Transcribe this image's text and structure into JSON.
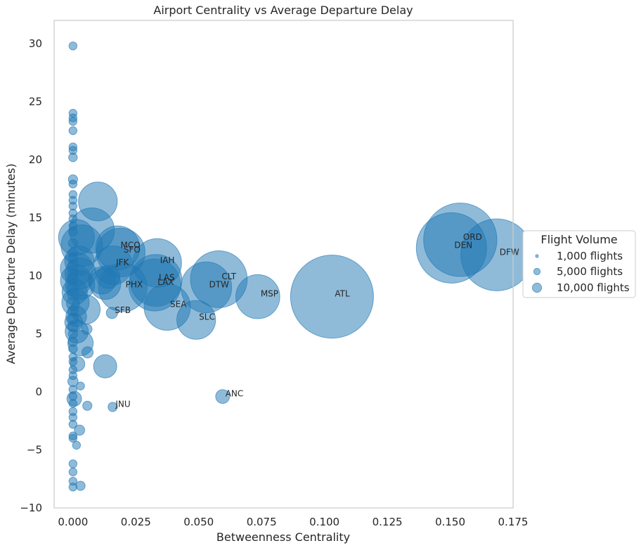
{
  "chart_data": {
    "type": "scatter",
    "title": "Airport Centrality vs Average Departure Delay",
    "xlabel": "Betweenness Centrality",
    "ylabel": "Average Departure Delay (minutes)",
    "xlim": [
      -0.0075,
      0.175
    ],
    "ylim": [
      -10,
      32
    ],
    "x_ticks": [
      "0.000",
      "0.025",
      "0.050",
      "0.075",
      "0.100",
      "0.125",
      "0.150",
      "0.175"
    ],
    "x_tick_values": [
      0,
      0.025,
      0.05,
      0.075,
      0.1,
      0.125,
      0.15,
      0.175
    ],
    "y_ticks": [
      "−10",
      "−5",
      "0",
      "5",
      "10",
      "15",
      "20",
      "25",
      "30"
    ],
    "y_tick_values": [
      -10,
      -5,
      0,
      5,
      10,
      15,
      20,
      25,
      30
    ],
    "grid": false,
    "marker_color": "#1f77b4",
    "marker_alpha": 0.5,
    "size_encoding": "flight volume",
    "legend": {
      "title": "Flight Volume",
      "placement": "center-right outside",
      "entries": [
        {
          "label": "1,000 flights",
          "flights": 1000
        },
        {
          "label": "5,000 flights",
          "flights": 5000
        },
        {
          "label": "10,000 flights",
          "flights": 10000
        }
      ]
    },
    "labeled_points": [
      {
        "label": "ATL",
        "x": 0.103,
        "y": 8.2,
        "flights": 32000
      },
      {
        "label": "ORD",
        "x": 0.154,
        "y": 13.1,
        "flights": 25000
      },
      {
        "label": "DEN",
        "x": 0.1505,
        "y": 12.4,
        "flights": 23000
      },
      {
        "label": "DFW",
        "x": 0.1685,
        "y": 11.8,
        "flights": 24000
      },
      {
        "label": "MSP",
        "x": 0.0735,
        "y": 8.2,
        "flights": 9000
      },
      {
        "label": "CLT",
        "x": 0.058,
        "y": 9.7,
        "flights": 15000
      },
      {
        "label": "DTW",
        "x": 0.053,
        "y": 9.0,
        "flights": 12000
      },
      {
        "label": "SLC",
        "x": 0.049,
        "y": 6.2,
        "flights": 7000
      },
      {
        "label": "ANC",
        "x": 0.0595,
        "y": -0.4,
        "flights": 900
      },
      {
        "label": "IAH",
        "x": 0.0335,
        "y": 11.1,
        "flights": 11000
      },
      {
        "label": "LAS",
        "x": 0.033,
        "y": 9.6,
        "flights": 12500
      },
      {
        "label": "LAX",
        "x": 0.0325,
        "y": 9.2,
        "flights": 12500
      },
      {
        "label": "SEA",
        "x": 0.0375,
        "y": 7.3,
        "flights": 10000
      },
      {
        "label": "PHX",
        "x": 0.0198,
        "y": 9.0,
        "flights": 11000
      },
      {
        "label": "MCO",
        "x": 0.0178,
        "y": 12.4,
        "flights": 9000
      },
      {
        "label": "SFO",
        "x": 0.019,
        "y": 12.0,
        "flights": 11000
      },
      {
        "label": "JFK",
        "x": 0.016,
        "y": 10.9,
        "flights": 7000
      },
      {
        "label": "SFB",
        "x": 0.0155,
        "y": 6.8,
        "flights": 600
      },
      {
        "label": "JNU",
        "x": 0.0158,
        "y": -1.3,
        "flights": 400
      }
    ],
    "unlabeled_points": [
      {
        "x": 0.0099,
        "y": 16.4,
        "flights": 7000
      },
      {
        "x": 0.0075,
        "y": 13.9,
        "flights": 9500
      },
      {
        "x": 0.0035,
        "y": 12.6,
        "flights": 8000
      },
      {
        "x": 0.0014,
        "y": 13.3,
        "flights": 6000
      },
      {
        "x": 0.0025,
        "y": 11.3,
        "flights": 4000
      },
      {
        "x": 0.0015,
        "y": 10.6,
        "flights": 5000
      },
      {
        "x": 0.003,
        "y": 10.2,
        "flights": 4500
      },
      {
        "x": 0.0012,
        "y": 9.6,
        "flights": 4500
      },
      {
        "x": 0.0028,
        "y": 9.2,
        "flights": 4000
      },
      {
        "x": 0.0007,
        "y": 8.6,
        "flights": 3000
      },
      {
        "x": 0.001,
        "y": 7.7,
        "flights": 3500
      },
      {
        "x": 0.005,
        "y": 7.1,
        "flights": 4000
      },
      {
        "x": 0.0013,
        "y": 6.5,
        "flights": 2000
      },
      {
        "x": 0.0003,
        "y": 6.0,
        "flights": 1500
      },
      {
        "x": 0.0015,
        "y": 5.2,
        "flights": 2500
      },
      {
        "x": 0.003,
        "y": 4.2,
        "flights": 3000
      },
      {
        "x": 0.0055,
        "y": 5.4,
        "flights": 500
      },
      {
        "x": 0.0058,
        "y": 3.4,
        "flights": 600
      },
      {
        "x": 0.0018,
        "y": 2.4,
        "flights": 1000
      },
      {
        "x": 0.0128,
        "y": 2.2,
        "flights": 2500
      },
      {
        "x": 0.0128,
        "y": 9.3,
        "flights": 4500
      },
      {
        "x": 0.0115,
        "y": 9.6,
        "flights": 3500
      },
      {
        "x": 0.014,
        "y": 9.9,
        "flights": 2500
      },
      {
        "x": 0.0005,
        "y": -0.6,
        "flights": 1000
      },
      {
        "x": 0.0057,
        "y": -1.2,
        "flights": 400
      },
      {
        "x": 0.0026,
        "y": -3.3,
        "flights": 500
      },
      {
        "x": 0.0014,
        "y": -4.6,
        "flights": 300
      },
      {
        "x": 0.003,
        "y": 0.5,
        "flights": 300
      },
      {
        "x": 0.003,
        "y": -8.1,
        "flights": 400
      },
      {
        "x": 0.0,
        "y": 29.8,
        "flights": 300
      },
      {
        "x": 0.0,
        "y": 24.0,
        "flights": 300
      },
      {
        "x": 0.0,
        "y": 23.6,
        "flights": 300
      },
      {
        "x": 0.0,
        "y": 23.3,
        "flights": 300
      },
      {
        "x": 0.0,
        "y": 22.5,
        "flights": 300
      },
      {
        "x": 0.0,
        "y": 21.1,
        "flights": 300
      },
      {
        "x": 0.0,
        "y": 20.8,
        "flights": 300
      },
      {
        "x": 0.0,
        "y": 20.2,
        "flights": 350
      },
      {
        "x": 0.0,
        "y": 18.3,
        "flights": 400
      },
      {
        "x": 0.0,
        "y": 17.9,
        "flights": 300
      },
      {
        "x": 0.0,
        "y": 17.0,
        "flights": 300
      },
      {
        "x": 0.0,
        "y": 16.5,
        "flights": 300
      },
      {
        "x": 0.0,
        "y": 16.0,
        "flights": 300
      },
      {
        "x": 0.0,
        "y": 15.4,
        "flights": 300
      },
      {
        "x": 0.0,
        "y": 14.9,
        "flights": 300
      },
      {
        "x": 0.0,
        "y": 14.3,
        "flights": 300
      },
      {
        "x": 0.0,
        "y": 13.8,
        "flights": 350
      },
      {
        "x": 0.0,
        "y": 12.8,
        "flights": 400
      },
      {
        "x": 0.0,
        "y": 12.0,
        "flights": 400
      },
      {
        "x": 0.0,
        "y": 11.5,
        "flights": 400
      },
      {
        "x": 0.0,
        "y": 10.9,
        "flights": 500
      },
      {
        "x": 0.0,
        "y": 10.2,
        "flights": 500
      },
      {
        "x": 0.0,
        "y": 9.8,
        "flights": 500
      },
      {
        "x": 0.0,
        "y": 9.0,
        "flights": 600
      },
      {
        "x": 0.0,
        "y": 8.4,
        "flights": 600
      },
      {
        "x": 0.0,
        "y": 7.6,
        "flights": 800
      },
      {
        "x": 0.0,
        "y": 7.0,
        "flights": 500
      },
      {
        "x": 0.0,
        "y": 6.3,
        "flights": 500
      },
      {
        "x": 0.0,
        "y": 5.6,
        "flights": 500
      },
      {
        "x": 0.0,
        "y": 5.0,
        "flights": 400
      },
      {
        "x": 0.0,
        "y": 4.3,
        "flights": 400
      },
      {
        "x": 0.0,
        "y": 3.7,
        "flights": 350
      },
      {
        "x": 0.0,
        "y": 3.0,
        "flights": 300
      },
      {
        "x": 0.0,
        "y": 2.6,
        "flights": 300
      },
      {
        "x": 0.0,
        "y": 1.9,
        "flights": 300
      },
      {
        "x": 0.0,
        "y": 1.4,
        "flights": 300
      },
      {
        "x": 0.0,
        "y": 0.9,
        "flights": 500
      },
      {
        "x": 0.0,
        "y": 0.2,
        "flights": 300
      },
      {
        "x": 0.0,
        "y": -0.4,
        "flights": 300
      },
      {
        "x": 0.0,
        "y": -1.0,
        "flights": 300
      },
      {
        "x": 0.0,
        "y": -1.7,
        "flights": 300
      },
      {
        "x": 0.0,
        "y": -2.2,
        "flights": 300
      },
      {
        "x": 0.0,
        "y": -2.8,
        "flights": 300
      },
      {
        "x": 0.0,
        "y": -3.8,
        "flights": 300
      },
      {
        "x": 0.0,
        "y": -4.0,
        "flights": 300
      },
      {
        "x": 0.0,
        "y": -6.2,
        "flights": 300
      },
      {
        "x": 0.0,
        "y": -6.9,
        "flights": 300
      },
      {
        "x": 0.0,
        "y": -7.7,
        "flights": 300
      },
      {
        "x": 0.0,
        "y": -8.2,
        "flights": 300
      }
    ]
  }
}
